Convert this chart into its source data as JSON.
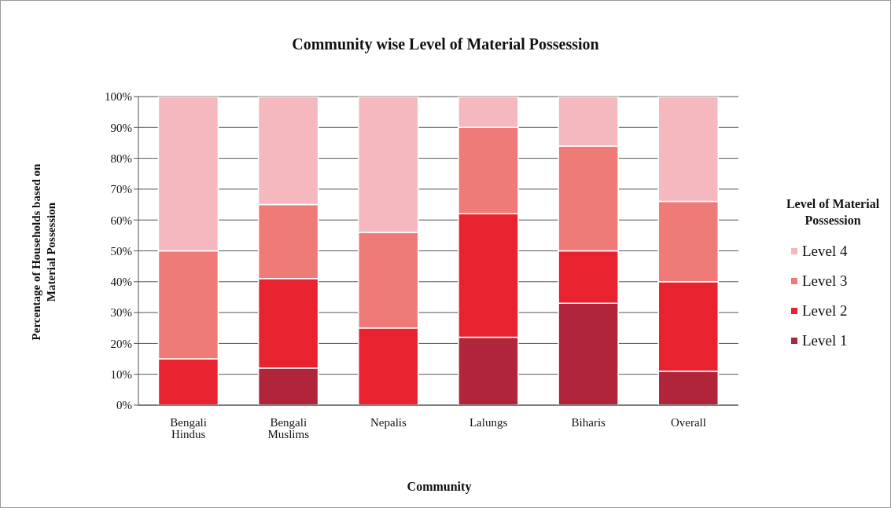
{
  "chart_data": {
    "type": "bar",
    "title": "Community wise Level of Material Possession",
    "xlabel": "Community",
    "ylabel": "Percentage of Households based on Material Possession",
    "legend_title": "Level of Material Possession",
    "categories": [
      "Bengali Hindus",
      "Bengali Muslims",
      "Nepalis",
      "Lalungs",
      "Biharis",
      "Overall"
    ],
    "stacked": true,
    "series": [
      {
        "name": "Level 1",
        "color": "#b0253a",
        "values": [
          0,
          12,
          0,
          22,
          33,
          11
        ]
      },
      {
        "name": "Level 2",
        "color": "#e8232f",
        "values": [
          15,
          29,
          25,
          40,
          17,
          29
        ]
      },
      {
        "name": "Level 3",
        "color": "#ee7b78",
        "values": [
          35,
          24,
          31,
          28,
          34,
          26
        ]
      },
      {
        "name": "Level 4",
        "color": "#f4b8be",
        "values": [
          50,
          35,
          44,
          10,
          16,
          34
        ]
      }
    ],
    "ylim": [
      0,
      100
    ],
    "yticks": [
      {
        "value": 0,
        "label": "0%"
      },
      {
        "value": 10,
        "label": "10%"
      },
      {
        "value": 20,
        "label": "20%"
      },
      {
        "value": 30,
        "label": "30%"
      },
      {
        "value": 40,
        "label": "40%"
      },
      {
        "value": 50,
        "label": "50%"
      },
      {
        "value": 60,
        "label": "60%"
      },
      {
        "value": 70,
        "label": "70%"
      },
      {
        "value": 80,
        "label": "80%"
      },
      {
        "value": 90,
        "label": "90%"
      },
      {
        "value": 100,
        "label": "100%"
      }
    ],
    "grid": "y",
    "legend": "right"
  }
}
